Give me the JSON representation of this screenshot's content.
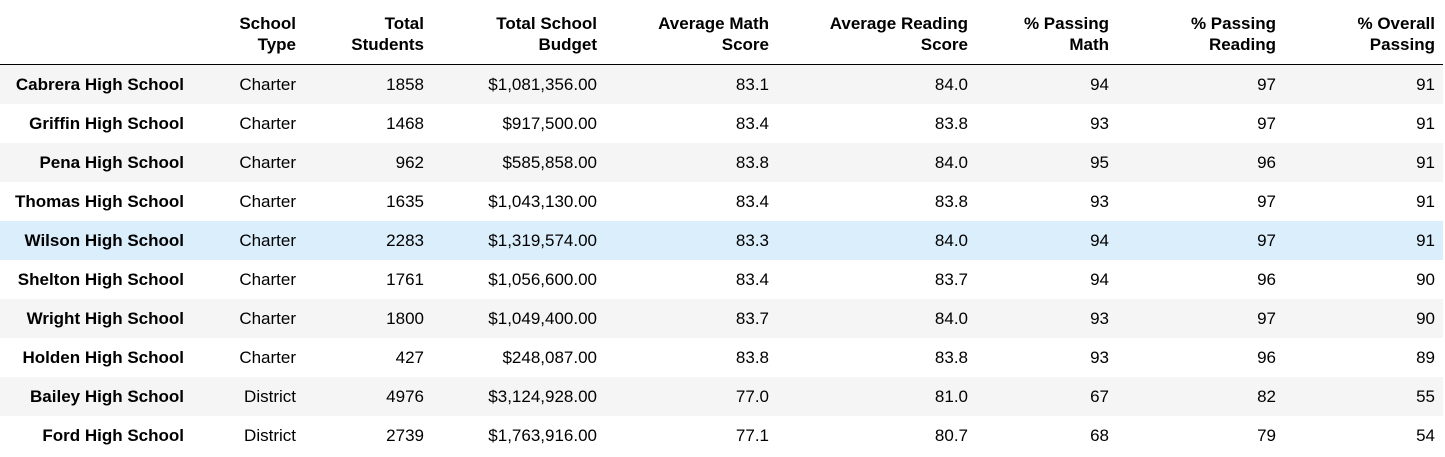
{
  "table": {
    "header": {
      "index": "",
      "school_type": [
        "School",
        "Type"
      ],
      "total_students": [
        "Total",
        "Students"
      ],
      "total_budget": [
        "Total School",
        "Budget"
      ],
      "avg_math": [
        "Average Math",
        "Score"
      ],
      "avg_reading": [
        "Average Reading",
        "Score"
      ],
      "pct_math": [
        "% Passing",
        "Math"
      ],
      "pct_reading": [
        "% Passing",
        "Reading"
      ],
      "pct_overall": [
        "% Overall",
        "Passing"
      ]
    },
    "rows": [
      {
        "school": "Cabrera High School",
        "type": "Charter",
        "students": "1858",
        "budget": "$1,081,356.00",
        "math": "83.1",
        "reading": "84.0",
        "pass_math": "94",
        "pass_reading": "97",
        "pass_overall": "91"
      },
      {
        "school": "Griffin High School",
        "type": "Charter",
        "students": "1468",
        "budget": "$917,500.00",
        "math": "83.4",
        "reading": "83.8",
        "pass_math": "93",
        "pass_reading": "97",
        "pass_overall": "91"
      },
      {
        "school": "Pena High School",
        "type": "Charter",
        "students": "962",
        "budget": "$585,858.00",
        "math": "83.8",
        "reading": "84.0",
        "pass_math": "95",
        "pass_reading": "96",
        "pass_overall": "91"
      },
      {
        "school": "Thomas High School",
        "type": "Charter",
        "students": "1635",
        "budget": "$1,043,130.00",
        "math": "83.4",
        "reading": "83.8",
        "pass_math": "93",
        "pass_reading": "97",
        "pass_overall": "91"
      },
      {
        "school": "Wilson High School",
        "type": "Charter",
        "students": "2283",
        "budget": "$1,319,574.00",
        "math": "83.3",
        "reading": "84.0",
        "pass_math": "94",
        "pass_reading": "97",
        "pass_overall": "91"
      },
      {
        "school": "Shelton High School",
        "type": "Charter",
        "students": "1761",
        "budget": "$1,056,600.00",
        "math": "83.4",
        "reading": "83.7",
        "pass_math": "94",
        "pass_reading": "96",
        "pass_overall": "90"
      },
      {
        "school": "Wright High School",
        "type": "Charter",
        "students": "1800",
        "budget": "$1,049,400.00",
        "math": "83.7",
        "reading": "84.0",
        "pass_math": "93",
        "pass_reading": "97",
        "pass_overall": "90"
      },
      {
        "school": "Holden High School",
        "type": "Charter",
        "students": "427",
        "budget": "$248,087.00",
        "math": "83.8",
        "reading": "83.8",
        "pass_math": "93",
        "pass_reading": "96",
        "pass_overall": "89"
      },
      {
        "school": "Bailey High School",
        "type": "District",
        "students": "4976",
        "budget": "$3,124,928.00",
        "math": "77.0",
        "reading": "81.0",
        "pass_math": "67",
        "pass_reading": "82",
        "pass_overall": "55"
      },
      {
        "school": "Ford High School",
        "type": "District",
        "students": "2739",
        "budget": "$1,763,916.00",
        "math": "77.1",
        "reading": "80.7",
        "pass_math": "68",
        "pass_reading": "79",
        "pass_overall": "54"
      }
    ],
    "hovered_row_index": 4
  },
  "colors": {
    "row_odd": "#f5f5f5",
    "row_even": "#ffffff",
    "row_hover": "#dbeefc",
    "header_border": "#000000"
  }
}
